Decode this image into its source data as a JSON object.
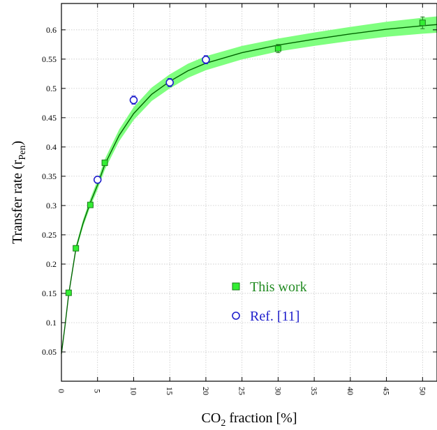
{
  "chart_data": {
    "type": "scatter",
    "xlabel": {
      "pre": "CO",
      "sub": "2",
      "post": " fraction [%]"
    },
    "ylabel": {
      "pre": "Transfer rate (r",
      "sub": "Pen",
      "post": ")"
    },
    "xlim": [
      0,
      52
    ],
    "ylim": [
      0,
      0.645
    ],
    "x_ticks": [
      0,
      5,
      10,
      15,
      20,
      25,
      30,
      35,
      40,
      45,
      50
    ],
    "x_tick_labels": [
      "0",
      "5",
      "10",
      "15",
      "20",
      "25",
      "30",
      "35",
      "40",
      "45",
      "50"
    ],
    "y_ticks": [
      0.05,
      0.1,
      0.15,
      0.2,
      0.25,
      0.3,
      0.35,
      0.4,
      0.45,
      0.5,
      0.55,
      0.6
    ],
    "y_tick_labels": [
      "0.05",
      "0.1",
      "0.15",
      "0.2",
      "0.25",
      "0.3",
      "0.35",
      "0.4",
      "0.45",
      "0.5",
      "0.55",
      "0.6"
    ],
    "grid": true,
    "legend_position": "center-right",
    "series": [
      {
        "name": "This work",
        "marker": "square",
        "fill": "#33ee33",
        "stroke": "#1a7a1a",
        "label_color": "#228b22",
        "points": [
          {
            "x": 1,
            "y": 0.151,
            "err": 0.004
          },
          {
            "x": 2,
            "y": 0.227,
            "err": 0.004
          },
          {
            "x": 4,
            "y": 0.301,
            "err": 0.004
          },
          {
            "x": 6,
            "y": 0.373,
            "err": 0.004
          },
          {
            "x": 30,
            "y": 0.568,
            "err": 0.007
          },
          {
            "x": 50,
            "y": 0.612,
            "err": 0.01
          }
        ]
      },
      {
        "name": "Ref. [11]",
        "marker": "circle",
        "fill": "#ffffff",
        "stroke": "#1f1fcc",
        "label_color": "#1f1fcc",
        "points": [
          {
            "x": 5,
            "y": 0.344,
            "err": 0.006
          },
          {
            "x": 10,
            "y": 0.48,
            "err": 0.007
          },
          {
            "x": 15,
            "y": 0.51,
            "err": 0.007
          },
          {
            "x": 20,
            "y": 0.549,
            "err": 0.007
          }
        ]
      }
    ],
    "fit_curve": {
      "color": "#006400",
      "band_color": "#7fff7f",
      "points": [
        [
          0,
          0.047
        ],
        [
          0.5,
          0.095
        ],
        [
          1,
          0.148
        ],
        [
          2,
          0.226
        ],
        [
          3,
          0.27
        ],
        [
          4,
          0.305
        ],
        [
          5,
          0.335
        ],
        [
          6,
          0.37
        ],
        [
          8,
          0.42
        ],
        [
          10,
          0.457
        ],
        [
          12.5,
          0.49
        ],
        [
          15,
          0.512
        ],
        [
          17.5,
          0.53
        ],
        [
          20,
          0.543
        ],
        [
          25,
          0.561
        ],
        [
          30,
          0.574
        ],
        [
          35,
          0.584
        ],
        [
          40,
          0.593
        ],
        [
          45,
          0.601
        ],
        [
          50,
          0.607
        ],
        [
          52,
          0.609
        ]
      ],
      "band_halfwidth": [
        [
          0,
          0.002
        ],
        [
          1,
          0.004
        ],
        [
          3,
          0.006
        ],
        [
          6,
          0.009
        ],
        [
          10,
          0.011
        ],
        [
          15,
          0.012
        ],
        [
          20,
          0.012
        ],
        [
          30,
          0.011
        ],
        [
          40,
          0.012
        ],
        [
          52,
          0.014
        ]
      ]
    }
  }
}
